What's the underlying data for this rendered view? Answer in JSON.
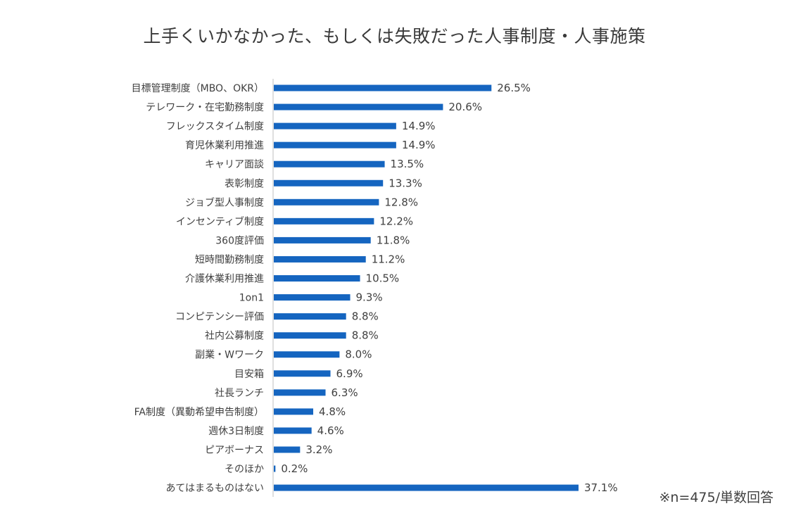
{
  "chart_data": {
    "type": "bar",
    "orientation": "horizontal",
    "title": "上手くいかなかった、もしくは失敗だった人事制度・人事施策",
    "note": "※n=475/単数回答",
    "bar_color": "#1565C0",
    "xlim": [
      0,
      40
    ],
    "value_suffix": "%",
    "categories": [
      "目標管理制度（MBO、OKR）",
      "テレワーク・在宅勤務制度",
      "フレックスタイム制度",
      "育児休業利用推進",
      "キャリア面談",
      "表彰制度",
      "ジョブ型人事制度",
      "インセンティブ制度",
      "360度評価",
      "短時間勤務制度",
      "介護休業利用推進",
      "1on1",
      "コンピテンシー評価",
      "社内公募制度",
      "副業・Wワーク",
      "目安箱",
      "社長ランチ",
      "FA制度（異動希望申告制度）",
      "週休3日制度",
      "ピアボーナス",
      "そのほか",
      "あてはまるものはない"
    ],
    "values": [
      26.5,
      20.6,
      14.9,
      14.9,
      13.5,
      13.3,
      12.8,
      12.2,
      11.8,
      11.2,
      10.5,
      9.3,
      8.8,
      8.8,
      8.0,
      6.9,
      6.3,
      4.8,
      4.6,
      3.2,
      0.2,
      37.1
    ]
  }
}
